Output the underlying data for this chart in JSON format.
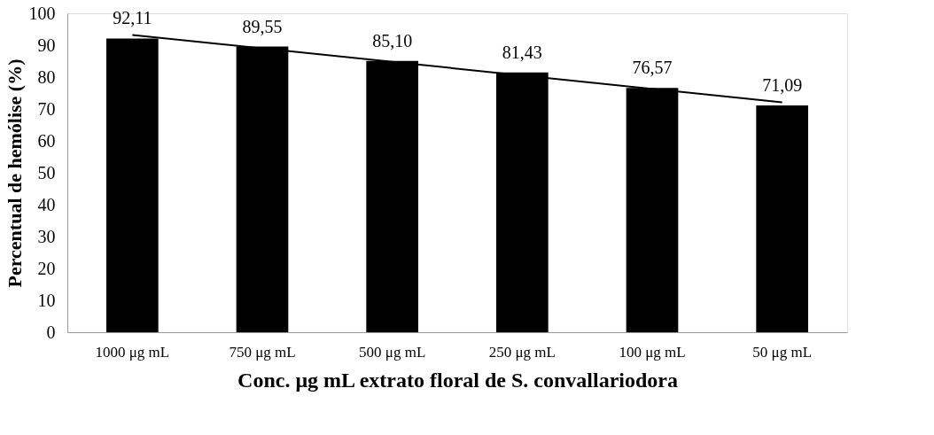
{
  "chart_data": {
    "type": "bar",
    "xlabel": "Conc. μg mL extrato floral de S. convallariodora",
    "ylabel": "Percentual de hemólise (%)",
    "categories": [
      "1000 μg mL",
      "750 μg mL",
      "500 μg mL",
      "250 μg mL",
      "100 μg mL",
      "50 μg mL"
    ],
    "series": [
      {
        "color": "#000000",
        "values": [
          92.11,
          89.55,
          85.1,
          81.43,
          76.57,
          71.09
        ],
        "value_labels": [
          "92,11",
          "89,55",
          "85,10",
          "81,43",
          "76,57",
          "71,09"
        ]
      },
      {
        "type": "line",
        "color": "#000000",
        "x": [
          "1000 μg mL",
          "50 μg mL"
        ],
        "values": [
          93.2,
          72.1
        ]
      }
    ],
    "ylim": [
      0,
      100
    ],
    "yticks": [
      0,
      10,
      20,
      30,
      40,
      50,
      60,
      70,
      80,
      90,
      100
    ],
    "grid": false,
    "marker": "none",
    "line_style": "solid"
  }
}
